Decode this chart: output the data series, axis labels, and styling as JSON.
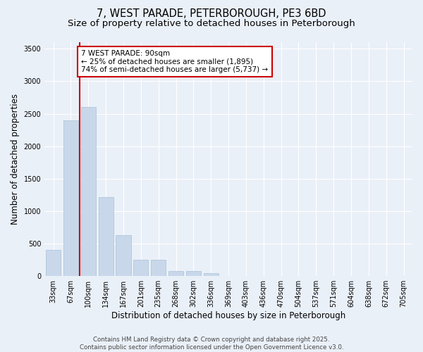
{
  "title1": "7, WEST PARADE, PETERBOROUGH, PE3 6BD",
  "title2": "Size of property relative to detached houses in Peterborough",
  "xlabel": "Distribution of detached houses by size in Peterborough",
  "ylabel": "Number of detached properties",
  "categories": [
    "33sqm",
    "67sqm",
    "100sqm",
    "134sqm",
    "167sqm",
    "201sqm",
    "235sqm",
    "268sqm",
    "302sqm",
    "336sqm",
    "369sqm",
    "403sqm",
    "436sqm",
    "470sqm",
    "504sqm",
    "537sqm",
    "571sqm",
    "604sqm",
    "638sqm",
    "672sqm",
    "705sqm"
  ],
  "values": [
    400,
    2400,
    2600,
    1220,
    630,
    250,
    250,
    80,
    80,
    50,
    5,
    0,
    0,
    0,
    0,
    0,
    0,
    0,
    0,
    0,
    0
  ],
  "bar_color": "#c8d8ea",
  "bar_edge_color": "#a8c0d6",
  "annotation_text": "7 WEST PARADE: 90sqm\n← 25% of detached houses are smaller (1,895)\n74% of semi-detached houses are larger (5,737) →",
  "annotation_box_color": "#ffffff",
  "annotation_box_edge_color": "#cc0000",
  "ylim": [
    0,
    3600
  ],
  "yticks": [
    0,
    500,
    1000,
    1500,
    2000,
    2500,
    3000,
    3500
  ],
  "bg_color": "#eaf0f8",
  "plot_bg_color": "#eaf0f8",
  "grid_color": "#ffffff",
  "footer1": "Contains HM Land Registry data © Crown copyright and database right 2025.",
  "footer2": "Contains public sector information licensed under the Open Government Licence v3.0.",
  "title_fontsize": 10.5,
  "subtitle_fontsize": 9.5,
  "tick_fontsize": 7,
  "label_fontsize": 8.5,
  "annotation_fontsize": 7.5,
  "footer_fontsize": 6.2
}
